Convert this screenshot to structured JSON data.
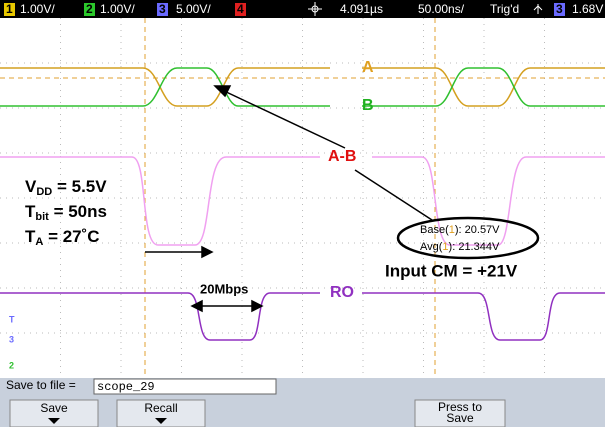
{
  "status_bar": {
    "channels": [
      {
        "number": "1",
        "scale": "1.00V/"
      },
      {
        "number": "2",
        "scale": "1.00V/"
      },
      {
        "number": "3",
        "scale": "5.00V/"
      },
      {
        "number": "4",
        "scale": ""
      }
    ],
    "time_delay": "4.091µs",
    "time_scale": "50.00ns/",
    "trigger_status": "Trig'd",
    "trigger_source": "3",
    "trigger_level": "1.68V"
  },
  "traces": {
    "a": "A",
    "b": "B",
    "a_minus_b": "A-B",
    "ro": "RO"
  },
  "annotations": {
    "vdd": {
      "main": "V",
      "sub": "DD",
      "rest": " = 5.5V"
    },
    "tbit": {
      "main": "T",
      "sub": "bit",
      "rest": " = 50ns"
    },
    "ta": {
      "main": "T",
      "sub": "A",
      "rest": "  = 27˚C"
    },
    "rate": "20Mbps",
    "input_cm": "Input CM = +21V"
  },
  "measurements": [
    {
      "name": "Base(",
      "source": "1",
      "value": "): 20.57V"
    },
    {
      "name": "Avg(",
      "source": "1",
      "value": "): 21.344V"
    }
  ],
  "markers": [
    "T",
    "3",
    "2"
  ],
  "save_bar": {
    "label": "Save to file = ",
    "file_name": "scope_29"
  },
  "softkeys": [
    {
      "label": "Save"
    },
    {
      "label": "Recall"
    },
    {
      "label": "Press to Save"
    }
  ]
}
